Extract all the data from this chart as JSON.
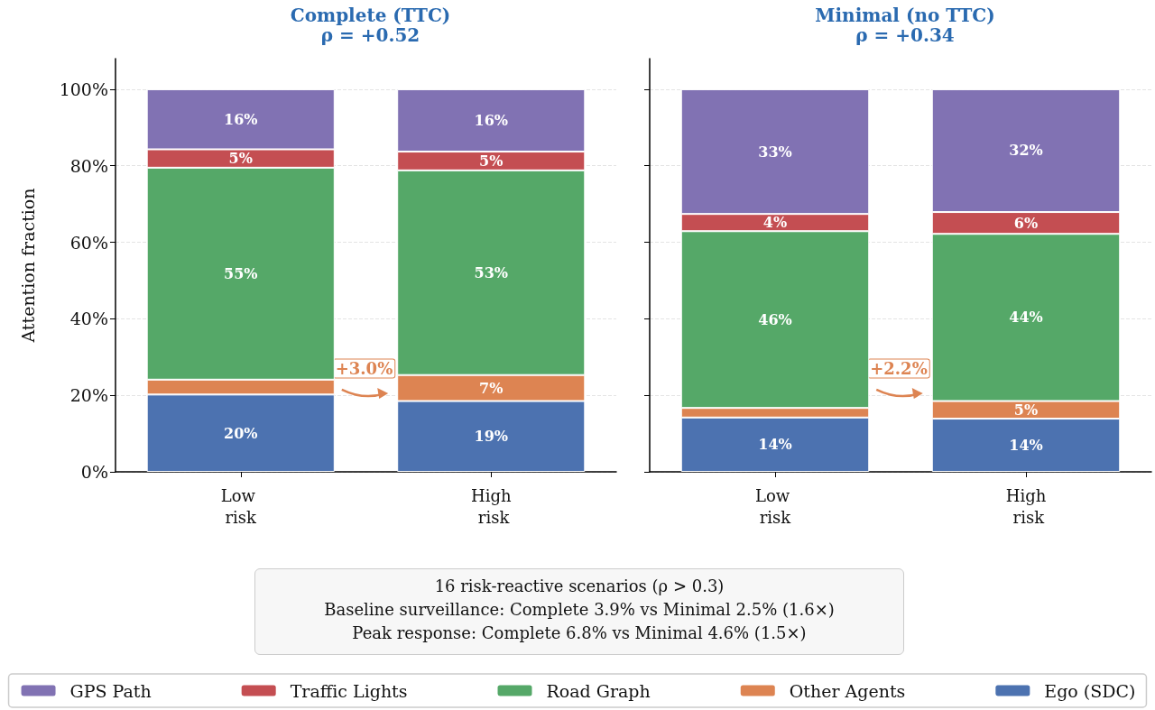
{
  "chart_data": [
    {
      "type": "bar",
      "title": "Complete (TTC)",
      "subtitle": "ρ = +0.52",
      "ylabel": "Attention fraction",
      "categories": [
        "Low risk",
        "High risk"
      ],
      "stacked": true,
      "ylim": [
        0,
        108
      ],
      "yticks": [
        {
          "value": 0,
          "label": "0%"
        },
        {
          "value": 20,
          "label": "20%"
        },
        {
          "value": 40,
          "label": "40%"
        },
        {
          "value": 60,
          "label": "60%"
        },
        {
          "value": 80,
          "label": "80%"
        },
        {
          "value": 100,
          "label": "100%"
        }
      ],
      "grid": "y",
      "legend": "bottom",
      "series": [
        {
          "name": "Ego (SDC)",
          "color": "#4c72b0",
          "values": [
            20.2,
            18.5
          ],
          "value_labels": [
            "20%",
            "19%"
          ]
        },
        {
          "name": "Other Agents",
          "color": "#dd8452",
          "values": [
            3.9,
            6.8
          ],
          "value_labels": [
            null,
            "7%"
          ]
        },
        {
          "name": "Road Graph",
          "color": "#55a868",
          "values": [
            55.4,
            53.5
          ],
          "value_labels": [
            "55%",
            "53%"
          ]
        },
        {
          "name": "Traffic Lights",
          "color": "#c44e52",
          "values": [
            4.8,
            4.9
          ],
          "value_labels": [
            "5%",
            "5%"
          ]
        },
        {
          "name": "GPS Path",
          "color": "#8172b3",
          "values": [
            15.7,
            16.3
          ],
          "value_labels": [
            "16%",
            "16%"
          ]
        }
      ],
      "annotations": [
        "+3.0%"
      ]
    },
    {
      "type": "bar",
      "title": "Minimal (no TTC)",
      "subtitle": "ρ = +0.34",
      "categories": [
        "Low risk",
        "High risk"
      ],
      "stacked": true,
      "ylim": [
        0,
        108
      ],
      "yticks": [
        {
          "value": 0,
          "label": null
        },
        {
          "value": 20,
          "label": null
        },
        {
          "value": 40,
          "label": null
        },
        {
          "value": 60,
          "label": null
        },
        {
          "value": 80,
          "label": null
        },
        {
          "value": 100,
          "label": null
        }
      ],
      "grid": "y",
      "tick_labels": "x",
      "series": [
        {
          "color": "#4c72b0",
          "values": [
            14.2,
            13.9
          ],
          "value_labels": [
            "14%",
            "14%"
          ]
        },
        {
          "color": "#dd8452",
          "values": [
            2.5,
            4.6
          ],
          "value_labels": [
            null,
            "5%"
          ]
        },
        {
          "color": "#55a868",
          "values": [
            46.2,
            43.7
          ],
          "value_labels": [
            "46%",
            "44%"
          ]
        },
        {
          "color": "#c44e52",
          "values": [
            4.5,
            5.7
          ],
          "value_labels": [
            "4%",
            "6%"
          ]
        },
        {
          "color": "#8172b3",
          "values": [
            32.6,
            32.1
          ],
          "value_labels": [
            "33%",
            "32%"
          ]
        }
      ],
      "annotations": [
        "+2.2%",
        "16 risk-reactive scenarios (ρ > 0.3)",
        "Baseline surveillance: Complete 3.9% vs Minimal 2.5% (1.6×)",
        "Peak response: Complete 6.8% vs Minimal 4.6% (1.5×)"
      ]
    }
  ]
}
